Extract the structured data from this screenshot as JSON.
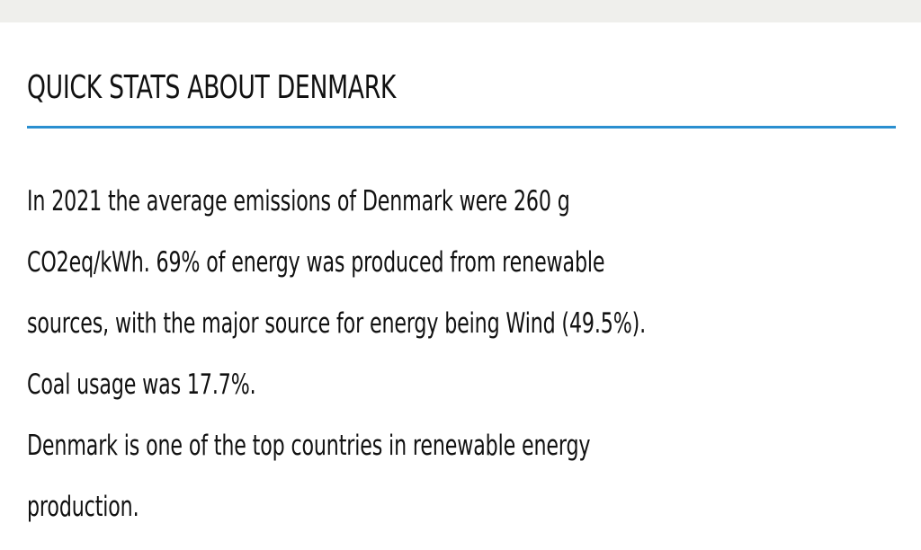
{
  "card": {
    "title": "QUICK STATS ABOUT DENMARK",
    "accent_color": "#2a8fd0",
    "lines": [
      "In 2021 the average emissions of Denmark were 260 g",
      "CO2eq/kWh. 69% of energy was produced from renewable",
      "sources, with the major source for energy being Wind (49.5%).",
      "Coal usage was 17.7%.",
      "Denmark is one of the top countries in renewable energy",
      "production."
    ]
  }
}
